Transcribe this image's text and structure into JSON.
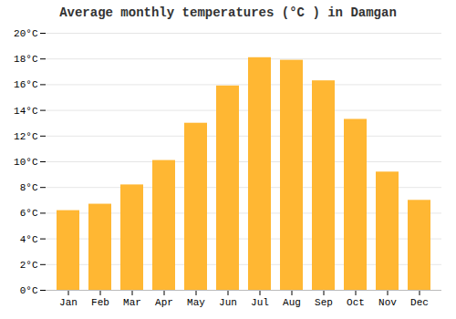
{
  "chart_data": {
    "type": "bar",
    "title": "Average monthly temperatures (°C ) in Damgan",
    "categories": [
      "Jan",
      "Feb",
      "Mar",
      "Apr",
      "May",
      "Jun",
      "Jul",
      "Aug",
      "Sep",
      "Oct",
      "Nov",
      "Dec"
    ],
    "values": [
      6.2,
      6.7,
      8.2,
      10.1,
      13.0,
      15.9,
      18.1,
      17.9,
      16.3,
      13.3,
      9.2,
      7.0
    ],
    "color": "#FFB733",
    "ylim": [
      0,
      20
    ],
    "yticks": [
      {
        "value": 0,
        "label": "0°C"
      },
      {
        "value": 2,
        "label": "2°C"
      },
      {
        "value": 4,
        "label": "4°C"
      },
      {
        "value": 6,
        "label": "6°C"
      },
      {
        "value": 8,
        "label": "8°C"
      },
      {
        "value": 10,
        "label": "10°C"
      },
      {
        "value": 12,
        "label": "12°C"
      },
      {
        "value": 14,
        "label": "14°C"
      },
      {
        "value": 16,
        "label": "16°C"
      },
      {
        "value": 18,
        "label": "18°C"
      },
      {
        "value": 20,
        "label": "20°C"
      }
    ],
    "grid": true
  }
}
